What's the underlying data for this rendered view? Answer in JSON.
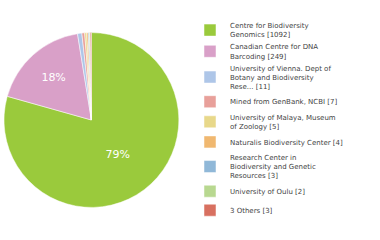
{
  "chart_data": {
    "type": "pie",
    "categories": [
      "Centre for Biodiversity\nGenomics [1092]",
      "Canadian Centre for DNA\nBarcoding [249]",
      "University of Vienna. Dept of\nBotany and Biodiversity\nRese... [11]",
      "Mined from GenBank, NCBI [7]",
      "University of Malaya, Museum\nof Zoology [5]",
      "Naturalis Biodiversity Center [4]",
      "Research Center in\nBiodiversity and Genetic\nResources [3]",
      "University of Oulu [2]",
      "3 Others [3]"
    ],
    "values": [
      1092,
      249,
      11,
      7,
      5,
      4,
      3,
      2,
      3
    ],
    "value_labels": [
      "79%",
      "18%",
      null,
      null,
      null,
      null,
      null,
      null,
      null
    ],
    "colors": [
      "#9aca3c",
      "#d9a0c8",
      "#aec6e8",
      "#e8a09a",
      "#e8d88a",
      "#f0b870",
      "#90b8d8",
      "#b8d890",
      "#d87060"
    ],
    "legend": "right"
  }
}
